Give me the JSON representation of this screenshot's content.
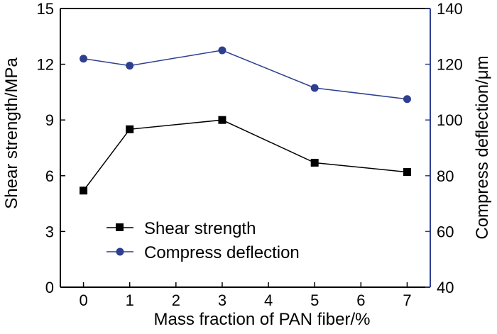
{
  "chart_data": {
    "type": "line",
    "title": "",
    "xlabel": "Mass fraction of PAN fiber/%",
    "ylabel_left": "Shear strength/MPa",
    "ylabel_right": "Compress deflection/μm",
    "x_ticks": [
      "0",
      "1",
      "2",
      "3",
      "4",
      "5",
      "6",
      "7"
    ],
    "xlim": [
      -0.5,
      7.5
    ],
    "ylim_left": [
      0,
      15
    ],
    "ylim_right": [
      40,
      140
    ],
    "y_left_ticks": [
      "0",
      "3",
      "6",
      "9",
      "12",
      "15"
    ],
    "y_right_ticks": [
      "40",
      "60",
      "80",
      "100",
      "120",
      "140"
    ],
    "legend_position": "lower-left",
    "colors": {
      "shear": "#000000",
      "deflection": "#2e3f8f",
      "right_axis": "#2e3f8f"
    },
    "series": [
      {
        "name": "Shear strength",
        "axis": "left",
        "marker": "square",
        "x": [
          0,
          1,
          3,
          5,
          7
        ],
        "values": [
          5.2,
          8.5,
          9.0,
          6.7,
          6.2
        ]
      },
      {
        "name": "Compress deflection",
        "axis": "right",
        "marker": "circle",
        "x": [
          0,
          1,
          3,
          5,
          7
        ],
        "values": [
          122,
          119.5,
          125,
          111.5,
          107.5
        ]
      }
    ]
  }
}
